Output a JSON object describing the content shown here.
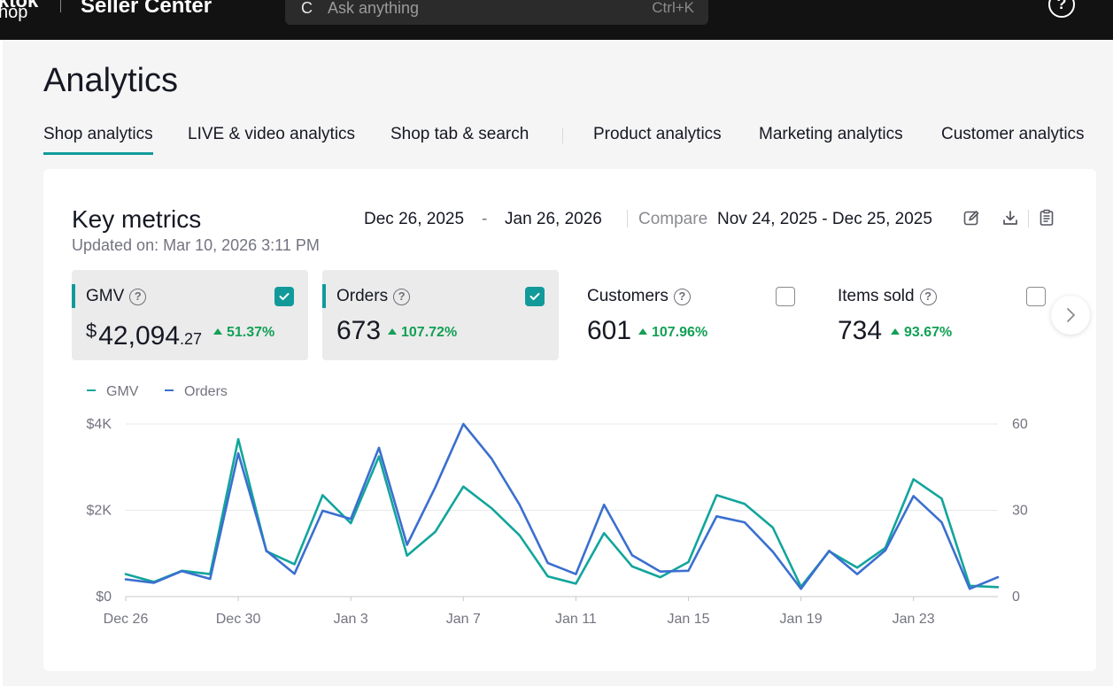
{
  "topbar": {
    "logo_line1": "ktok",
    "logo_line2": "hop",
    "brand": "Seller Center",
    "search_placeholder": "Ask anything",
    "search_shortcut": "Ctrl+K",
    "search_icon": "C",
    "help_label": "?"
  },
  "page": {
    "title": "Analytics",
    "tabs": [
      {
        "label": "Shop analytics",
        "active": true
      },
      {
        "label": "LIVE & video analytics"
      },
      {
        "label": "Shop tab & search"
      },
      {
        "label": "Product analytics"
      },
      {
        "label": "Marketing analytics"
      },
      {
        "label": "Customer analytics"
      }
    ]
  },
  "card": {
    "title": "Key metrics",
    "updated": "Updated on: Mar 10, 2026 3:11 PM",
    "date_start": "Dec 26, 2025",
    "date_sep": "-",
    "date_end": "Jan 26, 2026",
    "compare_label": "Compare",
    "compare_range": "Nov 24, 2025 - Dec 25, 2025",
    "icons": [
      "edit-icon",
      "download-icon",
      "clipboard-icon"
    ]
  },
  "metrics": [
    {
      "label": "GMV",
      "currency": "$",
      "value": "42,094",
      "cents": ".27",
      "delta": "51.37%",
      "selected": true
    },
    {
      "label": "Orders",
      "value": "673",
      "delta": "107.72%",
      "selected": true
    },
    {
      "label": "Customers",
      "value": "601",
      "delta": "107.96%",
      "selected": false
    },
    {
      "label": "Items sold",
      "value": "734",
      "delta": "93.67%",
      "selected": false
    }
  ],
  "colors": {
    "accent": "#129a9a",
    "gmv_line": "#12a59c",
    "orders_line": "#3b6fcf",
    "positive": "#12a055"
  },
  "chart_data": {
    "type": "line",
    "legend": [
      "GMV",
      "Orders"
    ],
    "x_tick_labels": [
      "Dec 26",
      "Dec 30",
      "Jan 3",
      "Jan 7",
      "Jan 11",
      "Jan 15",
      "Jan 19",
      "Jan 23"
    ],
    "y_left": {
      "ticks": [
        "$4K",
        "$2K",
        "$0"
      ],
      "range": [
        0,
        4000
      ]
    },
    "y_right": {
      "ticks": [
        "60",
        "30",
        "0"
      ],
      "range": [
        0,
        60
      ]
    },
    "grid": true,
    "series": [
      {
        "name": "GMV",
        "axis": "left",
        "values": [
          520,
          340,
          600,
          520,
          3650,
          1050,
          750,
          2350,
          1700,
          3250,
          950,
          1500,
          2550,
          2050,
          1420,
          470,
          300,
          1470,
          700,
          450,
          800,
          2350,
          2150,
          1600,
          230,
          1050,
          670,
          1130,
          2720,
          2270,
          250,
          220
        ]
      },
      {
        "name": "Orders",
        "axis": "left",
        "values": [
          400,
          320,
          590,
          410,
          3320,
          1060,
          530,
          1990,
          1800,
          3450,
          1200,
          2530,
          4000,
          3200,
          2130,
          780,
          520,
          2130,
          960,
          580,
          600,
          1860,
          1720,
          1040,
          180,
          1060,
          520,
          1070,
          2330,
          1720,
          180,
          450
        ]
      }
    ]
  }
}
